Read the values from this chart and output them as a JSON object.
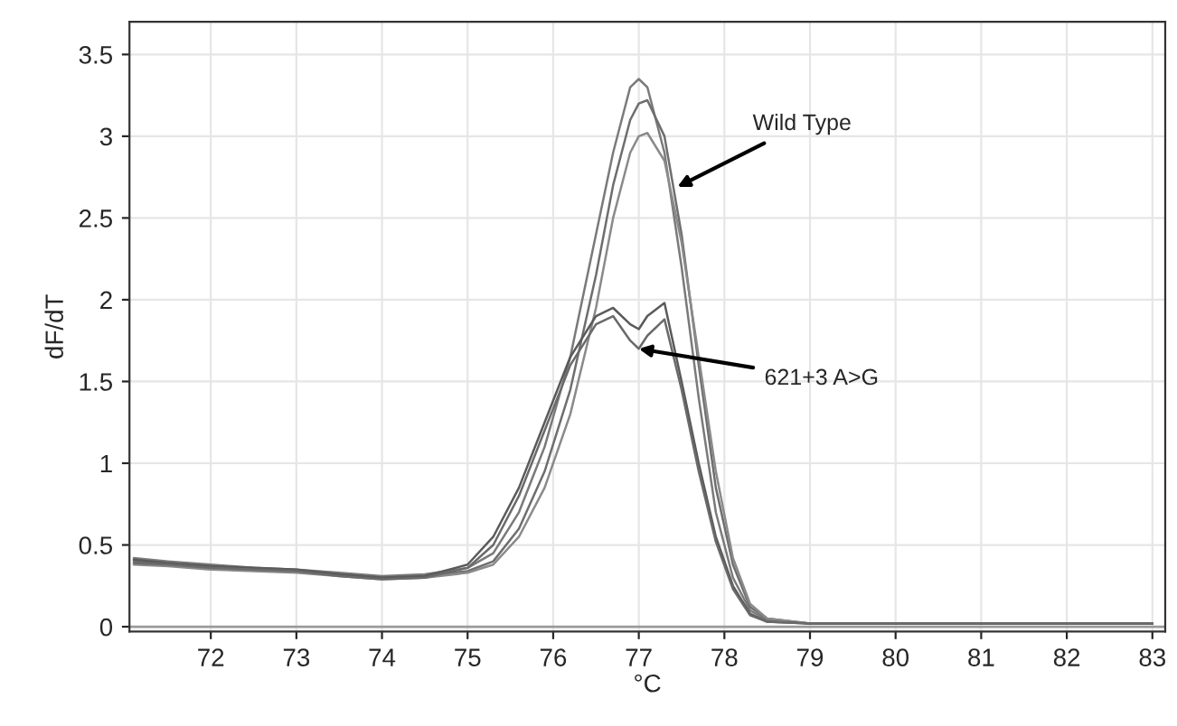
{
  "chart_data": {
    "type": "line",
    "xlabel": "°C",
    "ylabel": "dF/dT",
    "xlim": [
      71.05,
      83.15
    ],
    "ylim": [
      -0.03,
      3.7
    ],
    "xticks": [
      72,
      73,
      74,
      75,
      76,
      77,
      78,
      79,
      80,
      81,
      82,
      83
    ],
    "yticks": [
      0,
      {
        "value": 0.5,
        "label": "0.5"
      },
      1,
      {
        "value": 1.5,
        "label": "1.5"
      },
      2,
      {
        "value": 2.5,
        "label": "2.5"
      },
      3,
      {
        "value": 3.5,
        "label": "3.5"
      }
    ],
    "grid": true,
    "marker": "none",
    "line_style": "solid",
    "x": [
      71.1,
      71.5,
      72,
      72.5,
      73,
      73.5,
      74,
      74.5,
      75,
      75.3,
      75.6,
      75.9,
      76.2,
      76.5,
      76.7,
      76.9,
      77.0,
      77.1,
      77.3,
      77.5,
      77.7,
      77.9,
      78.1,
      78.3,
      78.5,
      79,
      80,
      81,
      82,
      83
    ],
    "series": [
      {
        "color": "#7a7a7a",
        "values": [
          0.42,
          0.4,
          0.38,
          0.36,
          0.35,
          0.33,
          0.31,
          0.32,
          0.36,
          0.45,
          0.7,
          1.1,
          1.65,
          2.4,
          2.9,
          3.3,
          3.35,
          3.3,
          2.9,
          2.2,
          1.4,
          0.7,
          0.3,
          0.1,
          0.04,
          0.02,
          0.02,
          0.02,
          0.02,
          0.02
        ]
      },
      {
        "color": "#6e6e6e",
        "values": [
          0.4,
          0.38,
          0.36,
          0.35,
          0.34,
          0.32,
          0.3,
          0.31,
          0.34,
          0.4,
          0.6,
          0.95,
          1.45,
          2.15,
          2.7,
          3.1,
          3.2,
          3.22,
          3.0,
          2.4,
          1.6,
          0.85,
          0.38,
          0.12,
          0.05,
          0.02,
          0.02,
          0.02,
          0.02,
          0.02
        ]
      },
      {
        "color": "#8a8a8a",
        "values": [
          0.38,
          0.37,
          0.35,
          0.34,
          0.33,
          0.31,
          0.29,
          0.3,
          0.33,
          0.38,
          0.55,
          0.85,
          1.3,
          1.95,
          2.5,
          2.9,
          3.0,
          3.02,
          2.85,
          2.35,
          1.65,
          0.95,
          0.42,
          0.14,
          0.05,
          0.02,
          0.02,
          0.02,
          0.02,
          0.02
        ]
      },
      {
        "color": "#5a5a5a",
        "values": [
          0.41,
          0.39,
          0.37,
          0.36,
          0.35,
          0.32,
          0.3,
          0.31,
          0.38,
          0.55,
          0.85,
          1.25,
          1.65,
          1.9,
          1.95,
          1.85,
          1.82,
          1.9,
          1.98,
          1.5,
          1.0,
          0.55,
          0.25,
          0.08,
          0.03,
          0.02,
          0.02,
          0.02,
          0.02,
          0.02
        ]
      },
      {
        "color": "#6a6a6a",
        "values": [
          0.39,
          0.38,
          0.36,
          0.35,
          0.34,
          0.31,
          0.29,
          0.3,
          0.36,
          0.5,
          0.8,
          1.2,
          1.6,
          1.85,
          1.9,
          1.75,
          1.7,
          1.78,
          1.88,
          1.45,
          0.95,
          0.52,
          0.23,
          0.07,
          0.03,
          0.02,
          0.02,
          0.02,
          0.02,
          0.02
        ]
      }
    ],
    "ref_lines": [
      {
        "axis": "y",
        "value": 0,
        "color": "#9a9a9a"
      }
    ],
    "annotations": [
      {
        "text": "Wild Type",
        "x": 77.45,
        "y": 2.69
      },
      {
        "text": "621+3 A>G",
        "x": 77.0,
        "y": 1.7
      }
    ]
  }
}
